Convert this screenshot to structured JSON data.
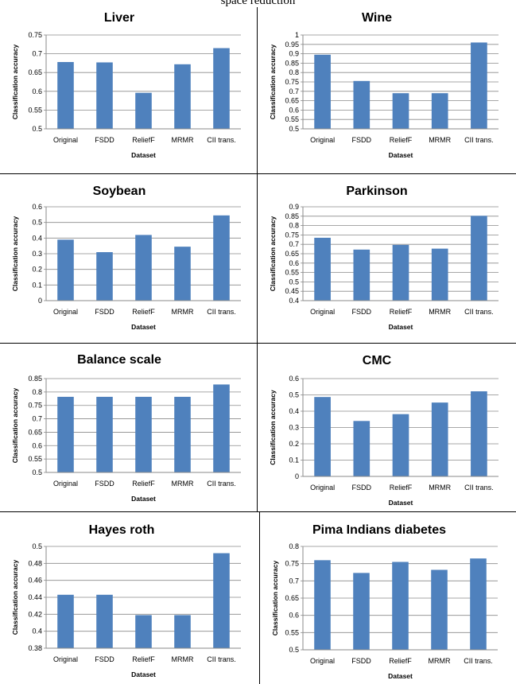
{
  "caption": "space reduction",
  "bar_color": "#4F81BD",
  "chart_data": [
    {
      "type": "bar",
      "title": "Liver",
      "xlabel": "Dataset",
      "ylabel": "Classification accuracy",
      "categories": [
        "Original",
        "FSDD",
        "ReliefF",
        "MRMR",
        "CII trans."
      ],
      "values": [
        0.678,
        0.677,
        0.596,
        0.672,
        0.715
      ],
      "ylim": [
        0.5,
        0.75
      ],
      "yticks": [
        "0.5",
        "0.55",
        "0.6",
        "0.65",
        "0.7",
        "0.75"
      ],
      "grid": true,
      "legend": "none"
    },
    {
      "type": "bar",
      "title": "Wine",
      "xlabel": "Dataset",
      "ylabel": "Classification accuracy",
      "categories": [
        "Original",
        "FSDD",
        "ReliefF",
        "MRMR",
        "CII trans."
      ],
      "values": [
        0.895,
        0.755,
        0.69,
        0.69,
        0.96
      ],
      "ylim": [
        0.5,
        1
      ],
      "yticks": [
        "0.5",
        "0.55",
        "0.6",
        "0.65",
        "0.7",
        "0.75",
        "0.8",
        "0.85",
        "0.9",
        "0.95",
        "1"
      ],
      "grid": true,
      "legend": "none"
    },
    {
      "type": "bar",
      "title": "Soybean",
      "xlabel": "Dataset",
      "ylabel": "Classification accuracy",
      "categories": [
        "Original",
        "FSDD",
        "ReliefF",
        "MRMR",
        "CII trans."
      ],
      "values": [
        0.39,
        0.31,
        0.42,
        0.345,
        0.545
      ],
      "ylim": [
        0,
        0.6
      ],
      "yticks": [
        "0",
        "0.1",
        "0.2",
        "0.3",
        "0.4",
        "0.5",
        "0.6"
      ],
      "grid": true,
      "legend": "none"
    },
    {
      "type": "bar",
      "title": "Parkinson",
      "xlabel": "Dataset",
      "ylabel": "Classification accuracy",
      "categories": [
        "Original",
        "FSDD",
        "ReliefF",
        "MRMR",
        "CII trans."
      ],
      "values": [
        0.735,
        0.672,
        0.697,
        0.677,
        0.852
      ],
      "ylim": [
        0.4,
        0.9
      ],
      "yticks": [
        "0.4",
        "0.45",
        "0.5",
        "0.55",
        "0.6",
        "0.65",
        "0.7",
        "0.75",
        "0.8",
        "0.85",
        "0.9"
      ],
      "grid": true,
      "legend": "none"
    },
    {
      "type": "bar",
      "title": "Balance scale",
      "xlabel": "Dataset",
      "ylabel": "Classification accuracy",
      "categories": [
        "Original",
        "FSDD",
        "ReliefF",
        "MRMR",
        "CII trans."
      ],
      "values": [
        0.782,
        0.782,
        0.782,
        0.782,
        0.828
      ],
      "ylim": [
        0.5,
        0.85
      ],
      "yticks": [
        "0.5",
        "0.55",
        "0.6",
        "0.65",
        "0.7",
        "0.75",
        "0.8",
        "0.85"
      ],
      "grid": true,
      "legend": "none"
    },
    {
      "type": "bar",
      "title": "CMC",
      "xlabel": "Dataset",
      "ylabel": "Classification accuracy",
      "categories": [
        "Original",
        "FSDD",
        "ReliefF",
        "MRMR",
        "CII trans."
      ],
      "values": [
        0.487,
        0.34,
        0.382,
        0.453,
        0.522
      ],
      "ylim": [
        0,
        0.6
      ],
      "yticks": [
        "0",
        "0.1",
        "0.2",
        "0.3",
        "0.4",
        "0.5",
        "0.6"
      ],
      "grid": true,
      "legend": "none"
    },
    {
      "type": "bar",
      "title": "Hayes roth",
      "xlabel": "Dataset",
      "ylabel": "Classification accuracy",
      "categories": [
        "Original",
        "FSDD",
        "ReliefF",
        "MRMR",
        "CII trans."
      ],
      "values": [
        0.443,
        0.443,
        0.419,
        0.419,
        0.492
      ],
      "ylim": [
        0.38,
        0.5
      ],
      "yticks": [
        "0.38",
        "0.4",
        "0.42",
        "0.44",
        "0.46",
        "0.48",
        "0.5"
      ],
      "grid": true,
      "legend": "none"
    },
    {
      "type": "bar",
      "title": "Pima Indians diabetes",
      "xlabel": "Dataset",
      "ylabel": "Classification accuracy",
      "categories": [
        "Original",
        "FSDD",
        "ReliefF",
        "MRMR",
        "CII trans."
      ],
      "values": [
        0.76,
        0.723,
        0.755,
        0.732,
        0.765
      ],
      "ylim": [
        0.5,
        0.8
      ],
      "yticks": [
        "0.5",
        "0.55",
        "0.6",
        "0.65",
        "0.7",
        "0.75",
        "0.8"
      ],
      "grid": true,
      "legend": "none"
    }
  ]
}
